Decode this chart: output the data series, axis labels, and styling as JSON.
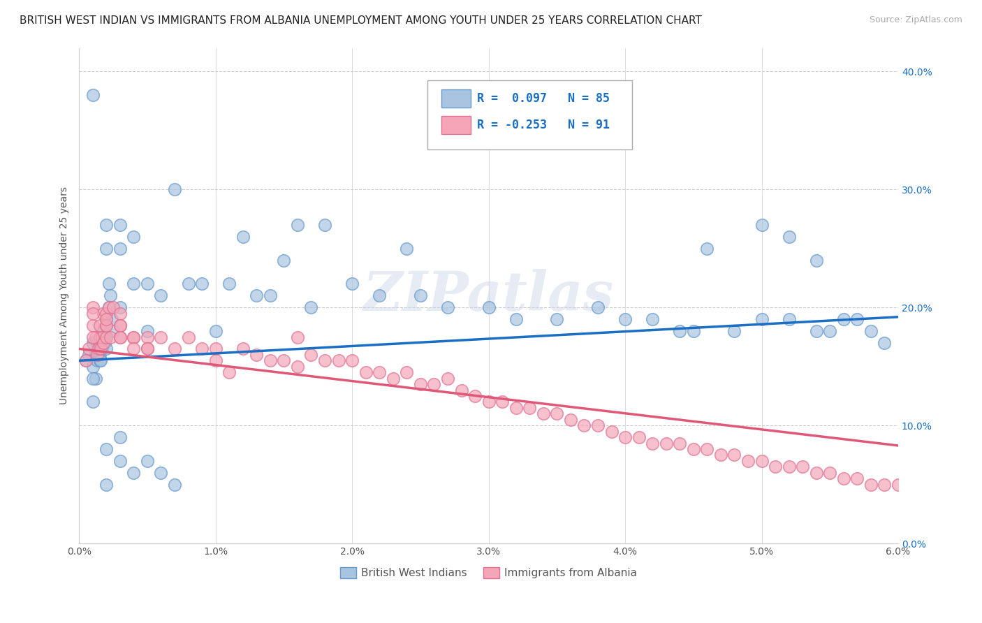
{
  "title": "BRITISH WEST INDIAN VS IMMIGRANTS FROM ALBANIA UNEMPLOYMENT AMONG YOUTH UNDER 25 YEARS CORRELATION CHART",
  "source": "Source: ZipAtlas.com",
  "ylabel": "Unemployment Among Youth under 25 years",
  "xlim": [
    0.0,
    0.06
  ],
  "ylim": [
    0.0,
    0.42
  ],
  "xticks": [
    0.0,
    0.01,
    0.02,
    0.03,
    0.04,
    0.05,
    0.06
  ],
  "xticklabels": [
    "0.0%",
    "1.0%",
    "2.0%",
    "3.0%",
    "4.0%",
    "5.0%",
    "6.0%"
  ],
  "yticks": [
    0.0,
    0.1,
    0.2,
    0.3,
    0.4
  ],
  "yticklabels": [
    "0.0%",
    "10.0%",
    "20.0%",
    "30.0%",
    "40.0%"
  ],
  "legend_R1": "R =  0.097",
  "legend_N1": "N = 85",
  "legend_R2": "R = -0.253",
  "legend_N2": "N = 91",
  "series1_color": "#a8c4e0",
  "series2_color": "#f4a6b8",
  "series1_edge_color": "#6699cc",
  "series2_edge_color": "#e07090",
  "trendline1_color": "#1a6fc4",
  "trendline2_color": "#e05878",
  "background_color": "#ffffff",
  "grid_color": "#cccccc",
  "watermark_text": "ZIPatlas",
  "title_fontsize": 11,
  "label_fontsize": 10,
  "tick_fontsize": 10,
  "series1_label": "British West Indians",
  "series2_label": "Immigrants from Albania",
  "series1_x": [
    0.0005,
    0.0007,
    0.001,
    0.001,
    0.001,
    0.0012,
    0.0012,
    0.0013,
    0.0013,
    0.0014,
    0.0015,
    0.0015,
    0.0015,
    0.0016,
    0.0016,
    0.0017,
    0.0018,
    0.0018,
    0.0019,
    0.002,
    0.002,
    0.002,
    0.002,
    0.002,
    0.0022,
    0.0022,
    0.0023,
    0.0024,
    0.0025,
    0.003,
    0.003,
    0.003,
    0.004,
    0.004,
    0.005,
    0.005,
    0.006,
    0.007,
    0.008,
    0.009,
    0.01,
    0.011,
    0.012,
    0.013,
    0.014,
    0.015,
    0.016,
    0.017,
    0.018,
    0.02,
    0.022,
    0.024,
    0.025,
    0.027,
    0.03,
    0.032,
    0.035,
    0.038,
    0.04,
    0.042,
    0.044,
    0.045,
    0.048,
    0.05,
    0.052,
    0.054,
    0.055,
    0.056,
    0.057,
    0.058,
    0.059,
    0.046,
    0.05,
    0.052,
    0.054,
    0.001,
    0.001,
    0.002,
    0.002,
    0.003,
    0.003,
    0.004,
    0.005,
    0.006,
    0.007
  ],
  "series1_y": [
    0.155,
    0.16,
    0.38,
    0.15,
    0.17,
    0.14,
    0.16,
    0.155,
    0.17,
    0.16,
    0.155,
    0.16,
    0.17,
    0.155,
    0.175,
    0.165,
    0.18,
    0.175,
    0.17,
    0.27,
    0.25,
    0.19,
    0.175,
    0.165,
    0.22,
    0.2,
    0.21,
    0.19,
    0.18,
    0.27,
    0.25,
    0.2,
    0.26,
    0.22,
    0.22,
    0.18,
    0.21,
    0.3,
    0.22,
    0.22,
    0.18,
    0.22,
    0.26,
    0.21,
    0.21,
    0.24,
    0.27,
    0.2,
    0.27,
    0.22,
    0.21,
    0.25,
    0.21,
    0.2,
    0.2,
    0.19,
    0.19,
    0.2,
    0.19,
    0.19,
    0.18,
    0.18,
    0.18,
    0.19,
    0.19,
    0.18,
    0.18,
    0.19,
    0.19,
    0.18,
    0.17,
    0.25,
    0.27,
    0.26,
    0.24,
    0.12,
    0.14,
    0.08,
    0.05,
    0.09,
    0.07,
    0.06,
    0.07,
    0.06,
    0.05
  ],
  "series2_x": [
    0.0005,
    0.0007,
    0.001,
    0.001,
    0.0012,
    0.0013,
    0.0014,
    0.0015,
    0.0015,
    0.0016,
    0.0017,
    0.0018,
    0.0018,
    0.002,
    0.002,
    0.002,
    0.0022,
    0.0023,
    0.0025,
    0.003,
    0.003,
    0.003,
    0.004,
    0.004,
    0.005,
    0.005,
    0.006,
    0.007,
    0.008,
    0.009,
    0.01,
    0.01,
    0.011,
    0.012,
    0.013,
    0.014,
    0.015,
    0.016,
    0.016,
    0.017,
    0.018,
    0.019,
    0.02,
    0.021,
    0.022,
    0.023,
    0.024,
    0.025,
    0.026,
    0.027,
    0.028,
    0.029,
    0.03,
    0.031,
    0.032,
    0.033,
    0.034,
    0.035,
    0.036,
    0.037,
    0.038,
    0.039,
    0.04,
    0.041,
    0.042,
    0.043,
    0.044,
    0.045,
    0.046,
    0.047,
    0.048,
    0.049,
    0.05,
    0.051,
    0.052,
    0.053,
    0.054,
    0.055,
    0.056,
    0.057,
    0.058,
    0.059,
    0.06,
    0.001,
    0.001,
    0.002,
    0.002,
    0.003,
    0.003,
    0.004,
    0.005
  ],
  "series2_y": [
    0.155,
    0.165,
    0.2,
    0.185,
    0.175,
    0.16,
    0.165,
    0.175,
    0.185,
    0.165,
    0.175,
    0.17,
    0.195,
    0.195,
    0.185,
    0.175,
    0.2,
    0.175,
    0.2,
    0.195,
    0.175,
    0.185,
    0.175,
    0.175,
    0.175,
    0.165,
    0.175,
    0.165,
    0.175,
    0.165,
    0.165,
    0.155,
    0.145,
    0.165,
    0.16,
    0.155,
    0.155,
    0.15,
    0.175,
    0.16,
    0.155,
    0.155,
    0.155,
    0.145,
    0.145,
    0.14,
    0.145,
    0.135,
    0.135,
    0.14,
    0.13,
    0.125,
    0.12,
    0.12,
    0.115,
    0.115,
    0.11,
    0.11,
    0.105,
    0.1,
    0.1,
    0.095,
    0.09,
    0.09,
    0.085,
    0.085,
    0.085,
    0.08,
    0.08,
    0.075,
    0.075,
    0.07,
    0.07,
    0.065,
    0.065,
    0.065,
    0.06,
    0.06,
    0.055,
    0.055,
    0.05,
    0.05,
    0.05,
    0.195,
    0.175,
    0.185,
    0.19,
    0.185,
    0.175,
    0.165,
    0.165
  ],
  "trendline1_x": [
    0.0,
    0.06
  ],
  "trendline1_y": [
    0.155,
    0.192
  ],
  "trendline2_x": [
    0.0,
    0.06
  ],
  "trendline2_y": [
    0.165,
    0.083
  ]
}
